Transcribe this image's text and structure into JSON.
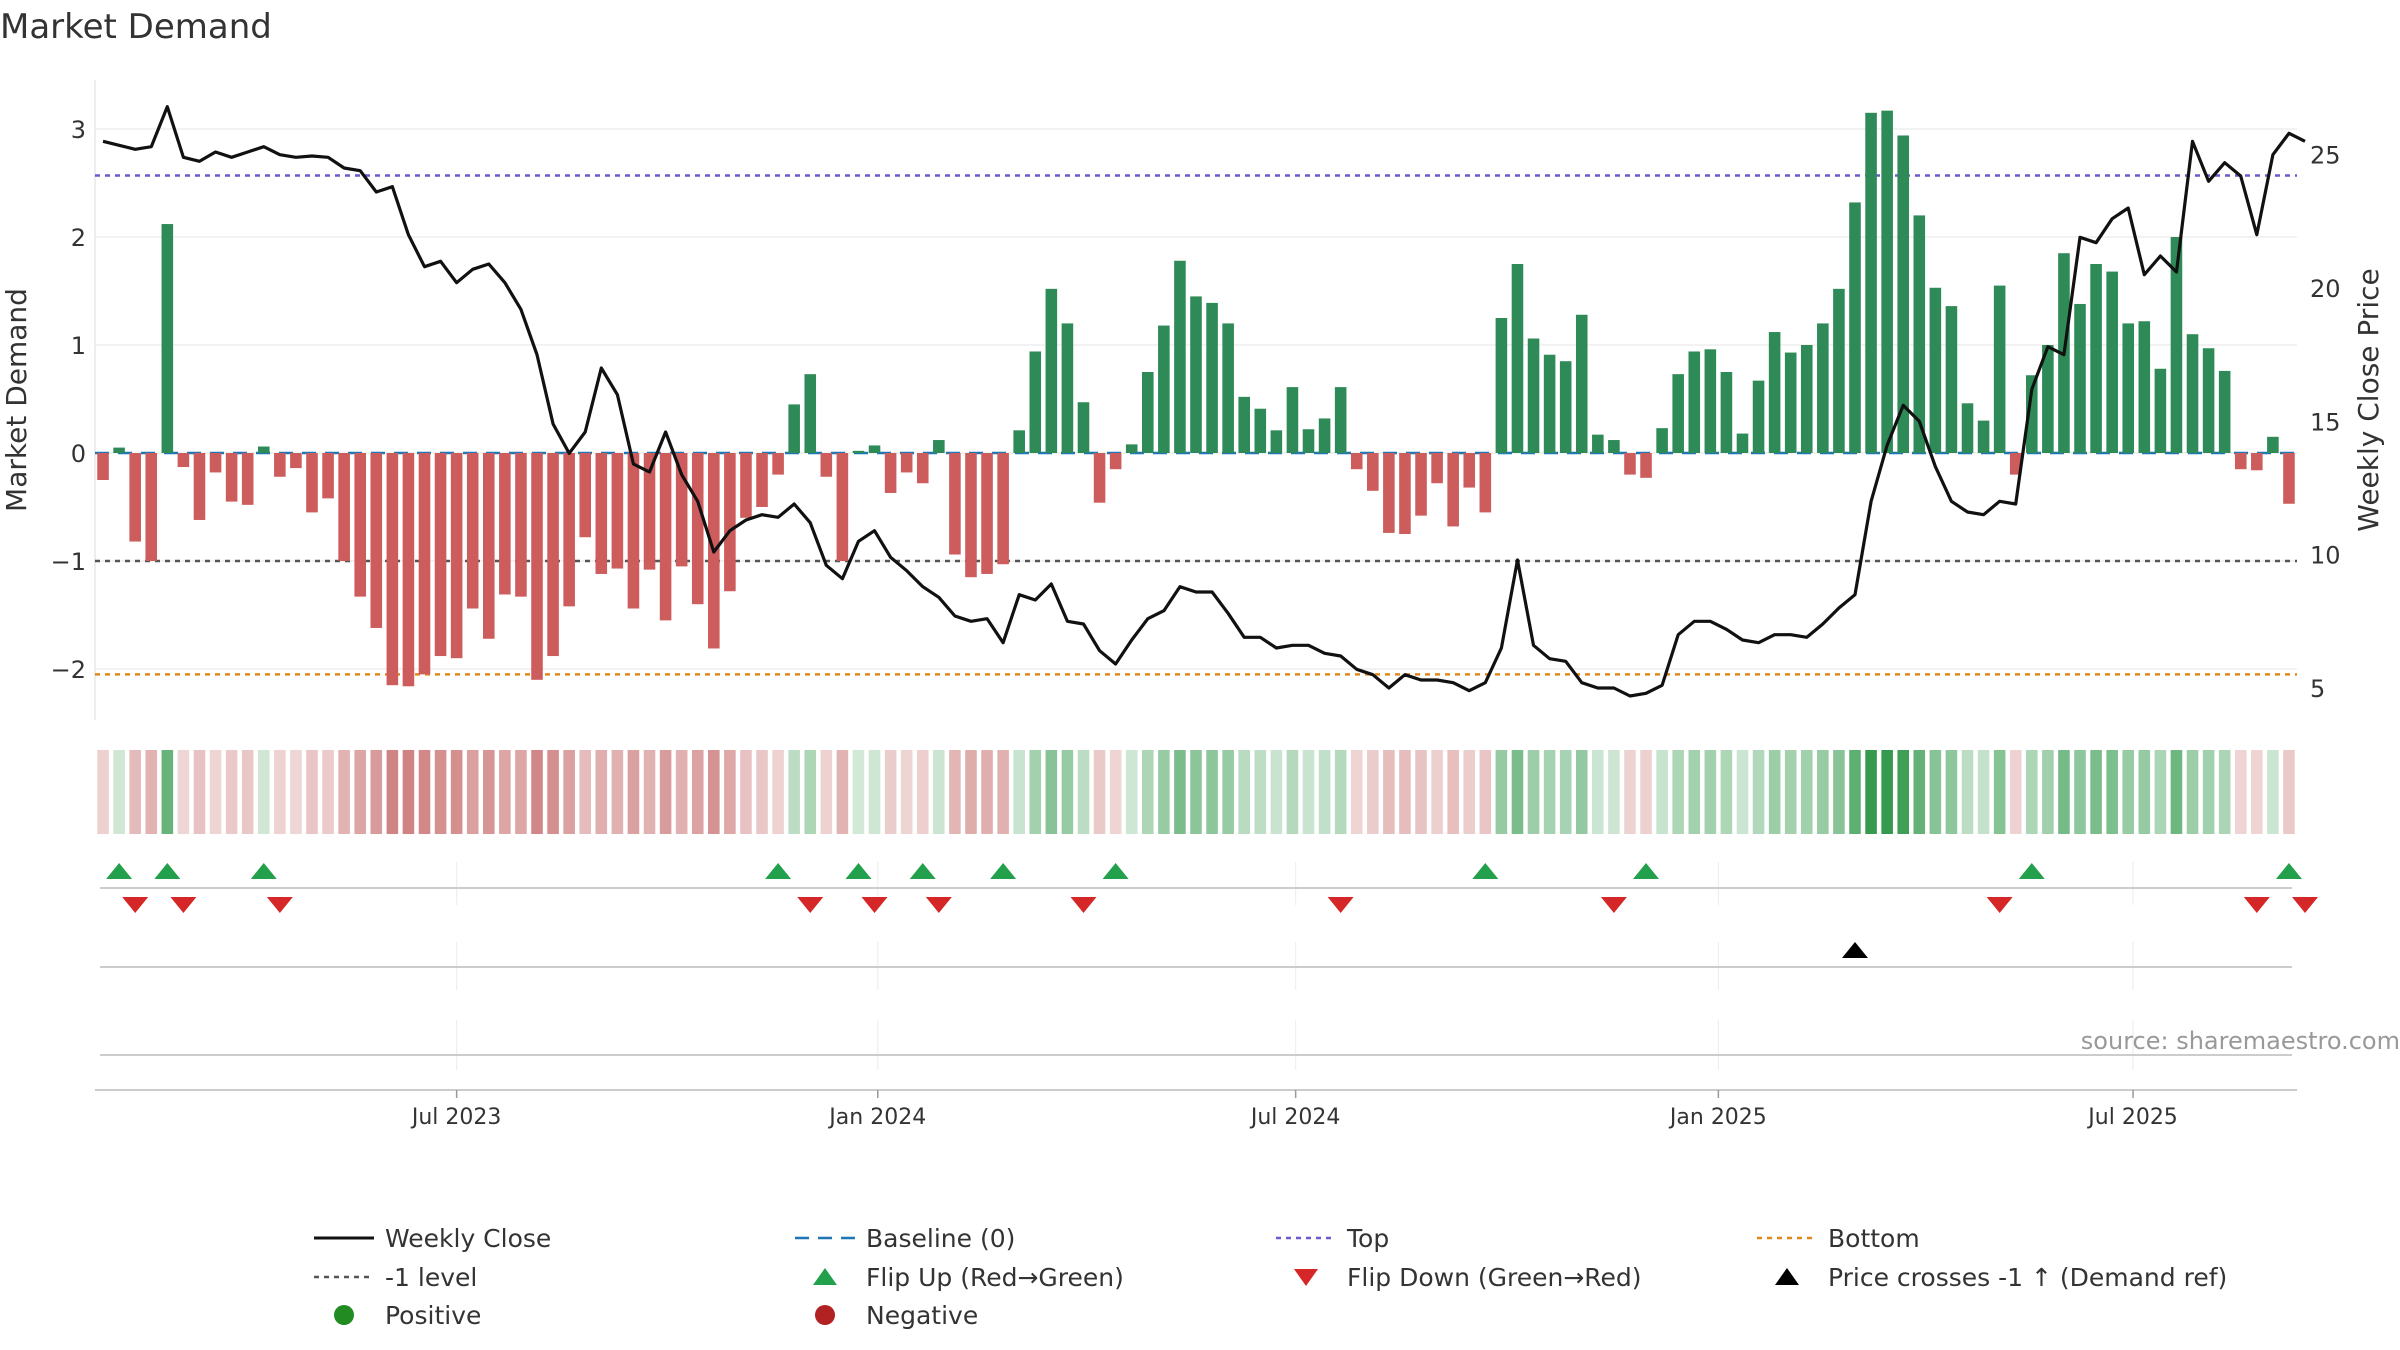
{
  "chart_data": {
    "type": "bar",
    "title": "Market Demand",
    "source": "source: sharemaestro.com",
    "ylabel_left": "Market Demand",
    "ylabel_right": "Weekly Close Price",
    "ylim_left": [
      -2.5,
      3.5
    ],
    "ylim_right": [
      3.8,
      27.8
    ],
    "yticks_left": [
      "3",
      "2",
      "1",
      "0",
      "−1",
      "−2"
    ],
    "yticks_left_values": [
      3,
      2,
      1,
      0,
      -1,
      -2
    ],
    "yticks_right": [
      "25",
      "20",
      "15",
      "10",
      "5"
    ],
    "yticks_right_values": [
      25,
      20,
      15,
      10,
      5
    ],
    "x_tick_labels": [
      "Jul 2023",
      "Jan 2024",
      "Jul 2024",
      "Jan 2025",
      "Jul 2025"
    ],
    "x_tick_index": [
      22,
      48.2,
      74.2,
      100.5,
      126.3
    ],
    "reference_lines": {
      "top": 2.57,
      "bottom": -2.05,
      "minus_one": -1,
      "baseline": 0
    },
    "colors": {
      "positive": "#2e8b57",
      "negative": "#cd5c5c",
      "close": "#111111",
      "baseline": "#1f77b4",
      "top": "#6a5acd",
      "bottom": "#e08a1e",
      "minus_one": "#555555",
      "flip_up": "#22a04b",
      "flip_down": "#d62728",
      "cross": "#000000",
      "pos_marker": "#228b22",
      "neg_marker": "#b22222"
    },
    "demand": [
      -0.25,
      0.05,
      -0.82,
      -1.0,
      2.12,
      -0.13,
      -0.62,
      -0.18,
      -0.45,
      -0.48,
      0.06,
      -0.22,
      -0.14,
      -0.55,
      -0.42,
      -1.0,
      -1.33,
      -1.62,
      -2.15,
      -2.16,
      -2.05,
      -1.88,
      -1.9,
      -1.44,
      -1.72,
      -1.31,
      -1.33,
      -2.1,
      -1.88,
      -1.42,
      -0.78,
      -1.12,
      -1.07,
      -1.44,
      -1.08,
      -1.55,
      -1.05,
      -1.4,
      -1.81,
      -1.28,
      -0.6,
      -0.5,
      -0.2,
      0.45,
      0.73,
      -0.22,
      -1.0,
      0.02,
      0.07,
      -0.37,
      -0.18,
      -0.28,
      0.12,
      -0.94,
      -1.15,
      -1.12,
      -1.03,
      0.21,
      0.94,
      1.52,
      1.2,
      0.47,
      -0.46,
      -0.15,
      0.08,
      0.75,
      1.18,
      1.78,
      1.45,
      1.39,
      1.2,
      0.52,
      0.41,
      0.21,
      0.61,
      0.22,
      0.32,
      0.61,
      -0.15,
      -0.35,
      -0.74,
      -0.75,
      -0.58,
      -0.28,
      -0.68,
      -0.32,
      -0.55,
      1.25,
      1.75,
      1.06,
      0.91,
      0.85,
      1.28,
      0.17,
      0.12,
      -0.2,
      -0.23,
      0.23,
      0.73,
      0.94,
      0.96,
      0.75,
      0.18,
      0.67,
      1.12,
      0.93,
      1.0,
      1.2,
      1.52,
      2.32,
      3.15,
      3.17,
      2.94,
      2.2,
      1.53,
      1.36,
      0.46,
      0.3,
      1.55,
      -0.2,
      0.72,
      1.0,
      1.85,
      1.38,
      1.75,
      1.68,
      1.2,
      1.22,
      0.78,
      2.0,
      1.1,
      0.97,
      0.76,
      -0.15,
      -0.16,
      0.15,
      -0.47
    ],
    "weekly_close": [
      25.5,
      25.35,
      25.2,
      25.3,
      26.8,
      24.9,
      24.75,
      25.1,
      24.9,
      25.1,
      25.3,
      25.0,
      24.9,
      24.95,
      24.9,
      24.5,
      24.4,
      23.6,
      23.8,
      22.0,
      20.8,
      21.0,
      20.2,
      20.7,
      20.9,
      20.2,
      19.2,
      17.5,
      14.9,
      13.8,
      14.6,
      17.0,
      16.0,
      13.4,
      13.1,
      14.6,
      13.0,
      12.0,
      10.1,
      10.9,
      11.3,
      11.5,
      11.4,
      11.9,
      11.2,
      9.6,
      9.1,
      10.5,
      10.9,
      9.9,
      9.4,
      8.8,
      8.4,
      7.7,
      7.5,
      7.6,
      6.7,
      8.5,
      8.3,
      8.9,
      7.5,
      7.4,
      6.4,
      5.9,
      6.8,
      7.6,
      7.9,
      8.8,
      8.6,
      8.6,
      7.8,
      6.9,
      6.9,
      6.5,
      6.6,
      6.6,
      6.3,
      6.2,
      5.7,
      5.5,
      5.0,
      5.5,
      5.3,
      5.3,
      5.2,
      4.9,
      5.2,
      6.5,
      9.8,
      6.6,
      6.1,
      6.0,
      5.2,
      5.0,
      5.0,
      4.7,
      4.8,
      5.1,
      7.0,
      7.5,
      7.5,
      7.2,
      6.8,
      6.7,
      7.0,
      7.0,
      6.9,
      7.4,
      8.0,
      8.5,
      12.0,
      14.1,
      15.6,
      15.0,
      13.3,
      12.0,
      11.6,
      11.5,
      12.0,
      11.9,
      16.2,
      17.8,
      17.5,
      21.9,
      21.7,
      22.6,
      23.0,
      20.5,
      21.2,
      20.6,
      25.5,
      24.0,
      24.7,
      24.2,
      22.0,
      25.0,
      25.8,
      25.5
    ],
    "flips_up_index": [
      1,
      4,
      10,
      42,
      47,
      51,
      56,
      63,
      86,
      96,
      120,
      136
    ],
    "flips_down_index": [
      2,
      5,
      11,
      44,
      48,
      52,
      61,
      77,
      94,
      118,
      134,
      137
    ],
    "price_cross_index": [
      109
    ],
    "legend": [
      {
        "label": "Weekly Close",
        "symbol": "line"
      },
      {
        "label": "Baseline (0)",
        "symbol": "dashed"
      },
      {
        "label": "Top",
        "symbol": "dotted-top"
      },
      {
        "label": "Bottom",
        "symbol": "dotted-bottom"
      },
      {
        "label": "-1 level",
        "symbol": "dotted-grey"
      },
      {
        "label": "Flip Up (Red→Green)",
        "symbol": "triangle-up"
      },
      {
        "label": "Flip Down (Green→Red)",
        "symbol": "triangle-down"
      },
      {
        "label": "Price crosses -1 ↑ (Demand ref)",
        "symbol": "triangle-black"
      },
      {
        "label": "Positive",
        "symbol": "dot-green"
      },
      {
        "label": "Negative",
        "symbol": "dot-red"
      }
    ]
  }
}
